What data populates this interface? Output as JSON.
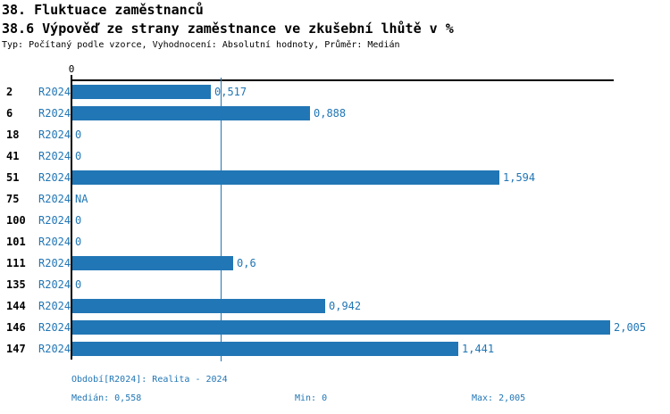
{
  "chart_data": {
    "type": "bar",
    "orientation": "horizontal",
    "title": "38. Fluktuace zaměstnanců",
    "subtitle": "38.6 Výpověď ze strany zaměstnance ve zkušební lhůtě v %",
    "meta": "Typ: Počítaný podle vzorce, Vyhodnocení: Absolutní hodnoty, Průměr: Medián",
    "series_label": "R2024",
    "categories": [
      "2",
      "6",
      "18",
      "41",
      "51",
      "75",
      "100",
      "101",
      "111",
      "135",
      "144",
      "146",
      "147"
    ],
    "values": [
      0.517,
      0.888,
      0,
      0,
      1.594,
      null,
      0,
      0,
      0.6,
      0,
      0.942,
      2.005,
      1.441
    ],
    "value_labels": [
      "0,517",
      "0,888",
      "0",
      "0",
      "1,594",
      "NA",
      "0",
      "0",
      "0,6",
      "0",
      "0,942",
      "2,005",
      "1,441"
    ],
    "x_axis": {
      "tick_label": "0",
      "xlim": [
        0,
        2.02
      ],
      "grid": false
    },
    "median_value": 0.558,
    "legend_position": "none",
    "footer": {
      "period": "Období[R2024]: Realita - 2024",
      "median": "Medián: 0,558",
      "min": "Min: 0",
      "max": "Max: 2,005"
    },
    "colors": {
      "bar": "#2176B5",
      "accent_text": "#2176B5",
      "axis": "#000000",
      "median_line": "#2176B5",
      "title_text": "#000000"
    }
  }
}
